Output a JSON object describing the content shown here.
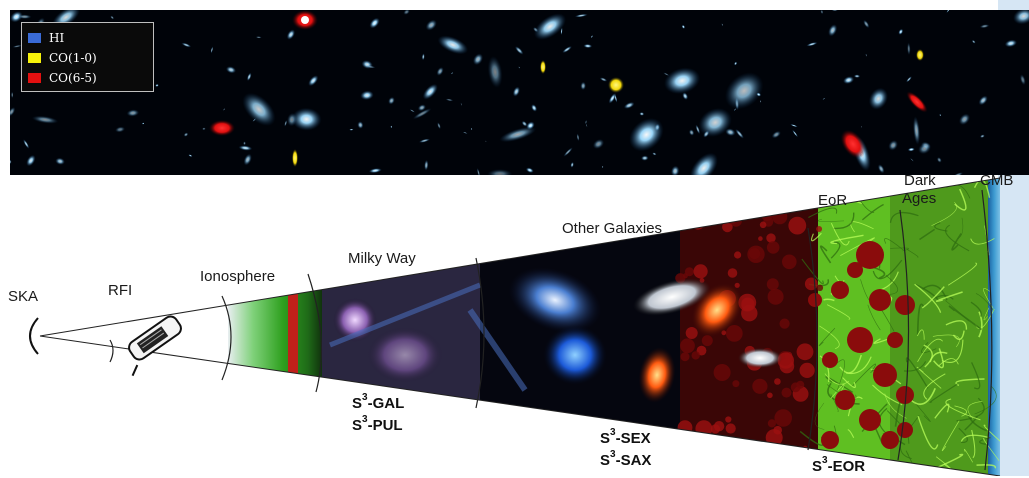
{
  "legend": {
    "items": [
      {
        "label": "HI",
        "color": "#3a6bd6"
      },
      {
        "label": "CO(1-0)",
        "color": "#f7f20a"
      },
      {
        "label": "CO(6-5)",
        "color": "#e31010"
      }
    ]
  },
  "diagram": {
    "observer": "SKA",
    "regions": [
      "RFI",
      "Ionosphere",
      "Milky Way",
      "Other Galaxies",
      "EoR",
      "Dark",
      "Ages",
      "CMB"
    ],
    "surveys": {
      "prefix": "S",
      "exponent": "3",
      "gal": "-GAL",
      "pul": "-PUL",
      "sex": "-SEX",
      "sax": "-SAX",
      "eor": "-EOR"
    }
  },
  "colors": {
    "ionosphere_green": "#3fb02a",
    "ionosphere_red": "#c0201a",
    "eor_red": "#8a0c0c",
    "dark_ages_green": "#6fd12a",
    "cmb_blue": "#3a8cc4"
  }
}
